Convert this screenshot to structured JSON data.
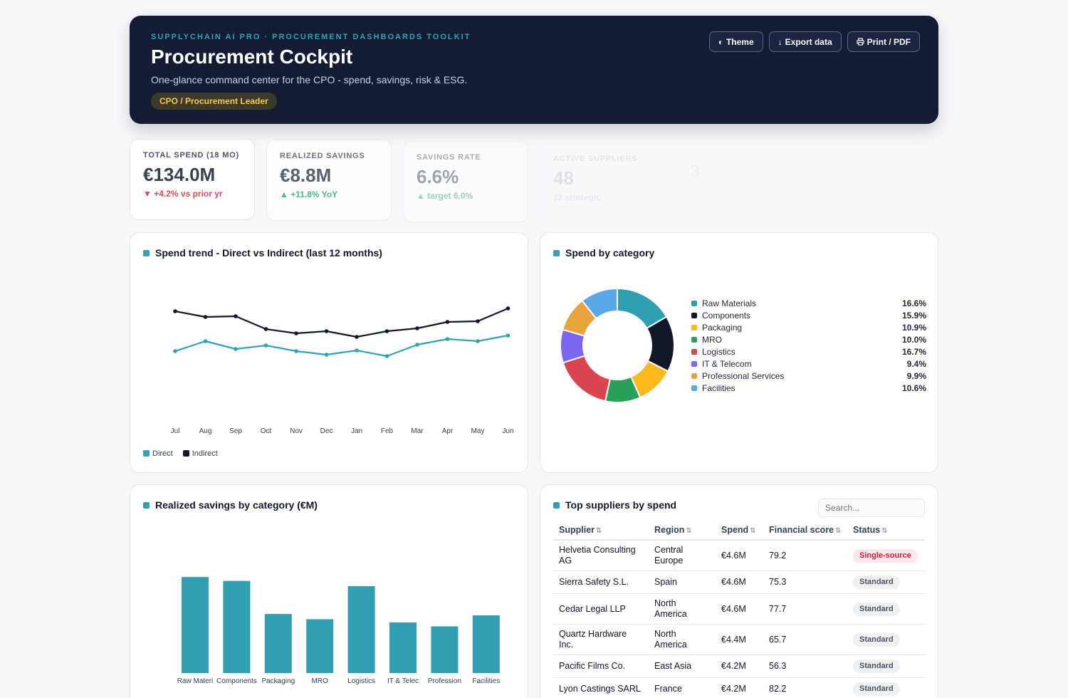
{
  "header": {
    "kicker": "SUPPLYCHAIN AI PRO · PROCUREMENT DASHBOARDS TOOLKIT",
    "title": "Procurement Cockpit",
    "subtitle": "One-glance command center for the CPO - spend, savings, risk & ESG.",
    "role_pill": "CPO / Procurement Leader",
    "buttons": {
      "theme": "Theme",
      "export": "Export data",
      "print": "Print / PDF"
    },
    "icons": {
      "theme": "half-circle-icon",
      "export": "down-arrow-icon",
      "print": "printer-icon"
    }
  },
  "kpis": [
    {
      "label": "TOTAL SPEND (18 MO)",
      "value": "€134.0M",
      "delta": "▼ +4.2% vs prior yr",
      "trend": "negative",
      "opacity": 1.0
    },
    {
      "label": "REALIZED SAVINGS",
      "value": "€8.8M",
      "delta": "▲ +11.8% YoY",
      "trend": "positive",
      "opacity": 0.82
    },
    {
      "label": "SAVINGS RATE",
      "value": "6.6%",
      "delta": "▲ target 6.0%",
      "trend": "positive",
      "opacity": 0.45
    },
    {
      "label": "ACTIVE SUPPLIERS",
      "value": "48",
      "delta": "12 strategic",
      "trend": "neutral",
      "opacity": 0.12
    },
    {
      "label": "",
      "value": "3",
      "delta": "",
      "trend": "neutral",
      "opacity": 0.04
    }
  ],
  "spend_trend": {
    "title": "Spend trend - Direct vs Indirect (last 12 months)",
    "legend": {
      "direct": "Direct",
      "indirect": "Indirect"
    }
  },
  "category_spend": {
    "title": "Spend by category"
  },
  "savings": {
    "title": "Realized savings by category (€M)",
    "tick_labels": [
      "Raw Materi",
      "Components",
      "Packaging",
      "MRO",
      "Logistics",
      "IT & Telec",
      "Profession",
      "Facilities"
    ]
  },
  "suppliers": {
    "title": "Top suppliers by spend",
    "search_placeholder": "Search...",
    "columns": [
      "Supplier",
      "Region",
      "Spend",
      "Financial score",
      "Status"
    ],
    "sort_icon": "sort-arrows-icon",
    "rows": [
      {
        "supplier": "Helvetia Consulting AG",
        "region": "Central Europe",
        "spend": "€4.6M",
        "score": "79.2",
        "status": "Single-source",
        "status_type": "single"
      },
      {
        "supplier": "Sierra Safety S.L.",
        "region": "Spain",
        "spend": "€4.6M",
        "score": "75.3",
        "status": "Standard",
        "status_type": "std"
      },
      {
        "supplier": "Cedar Legal LLP",
        "region": "North America",
        "spend": "€4.6M",
        "score": "77.7",
        "status": "Standard",
        "status_type": "std"
      },
      {
        "supplier": "Quartz Hardware Inc.",
        "region": "North America",
        "spend": "€4.4M",
        "score": "65.7",
        "status": "Standard",
        "status_type": "std"
      },
      {
        "supplier": "Pacific Films Co.",
        "region": "East Asia",
        "spend": "€4.2M",
        "score": "56.3",
        "status": "Standard",
        "status_type": "std"
      },
      {
        "supplier": "Lyon Castings SARL",
        "region": "France",
        "spend": "€4.2M",
        "score": "82.2",
        "status": "Standard",
        "status_type": "std"
      }
    ]
  },
  "colors": {
    "accent": "#2fa3b6",
    "navy": "#141c33",
    "direct": "#2fa3b6",
    "indirect": "#111827"
  },
  "chart_data": [
    {
      "type": "line",
      "title": "Spend trend - Direct vs Indirect (last 12 months)",
      "categories": [
        "Jul",
        "Aug",
        "Sep",
        "Oct",
        "Nov",
        "Dec",
        "Jan",
        "Feb",
        "Mar",
        "Apr",
        "May",
        "Jun"
      ],
      "series": [
        {
          "name": "Direct",
          "color": "#2fa3b6",
          "values": [
            4.2,
            4.9,
            4.35,
            4.6,
            4.2,
            3.95,
            4.25,
            3.85,
            4.65,
            5.05,
            4.9,
            5.3
          ]
        },
        {
          "name": "Indirect",
          "color": "#111827",
          "values": [
            7.0,
            6.6,
            6.65,
            5.75,
            5.45,
            5.6,
            5.2,
            5.6,
            5.8,
            6.25,
            6.3,
            7.2
          ]
        }
      ],
      "ylim": [
        0,
        10
      ],
      "grid": false,
      "legend": "bottom-left"
    },
    {
      "type": "pie",
      "title": "Spend by category",
      "donut": true,
      "legend": "right",
      "slices": [
        {
          "name": "Raw Materials",
          "label": "16.6%",
          "value": 16.6,
          "color": "#2f9fb1"
        },
        {
          "name": "Components",
          "label": "15.9%",
          "value": 15.9,
          "color": "#111827"
        },
        {
          "name": "Packaging",
          "label": "10.9%",
          "value": 10.9,
          "color": "#fbb91c"
        },
        {
          "name": "MRO",
          "label": "10.0%",
          "value": 10.0,
          "color": "#2aa05d"
        },
        {
          "name": "Logistics",
          "label": "16.7%",
          "value": 16.7,
          "color": "#dc4450"
        },
        {
          "name": "IT & Telecom",
          "label": "9.4%",
          "value": 9.4,
          "color": "#7c67f0"
        },
        {
          "name": "Professional Services",
          "label": "9.9%",
          "value": 9.9,
          "color": "#e8a33d"
        },
        {
          "name": "Facilities",
          "label": "10.6%",
          "value": 10.6,
          "color": "#5aa9e6"
        }
      ]
    },
    {
      "type": "bar",
      "title": "Realized savings by category (€M)",
      "categories": [
        "Raw Materials",
        "Components",
        "Packaging",
        "MRO",
        "Logistics",
        "IT & Telecom",
        "Professional Services",
        "Facilities"
      ],
      "values": [
        1.48,
        1.42,
        0.91,
        0.83,
        1.34,
        0.78,
        0.72,
        0.89
      ],
      "ylim": [
        0,
        1.8
      ],
      "color": "#2f9fb1",
      "grid": false
    }
  ]
}
